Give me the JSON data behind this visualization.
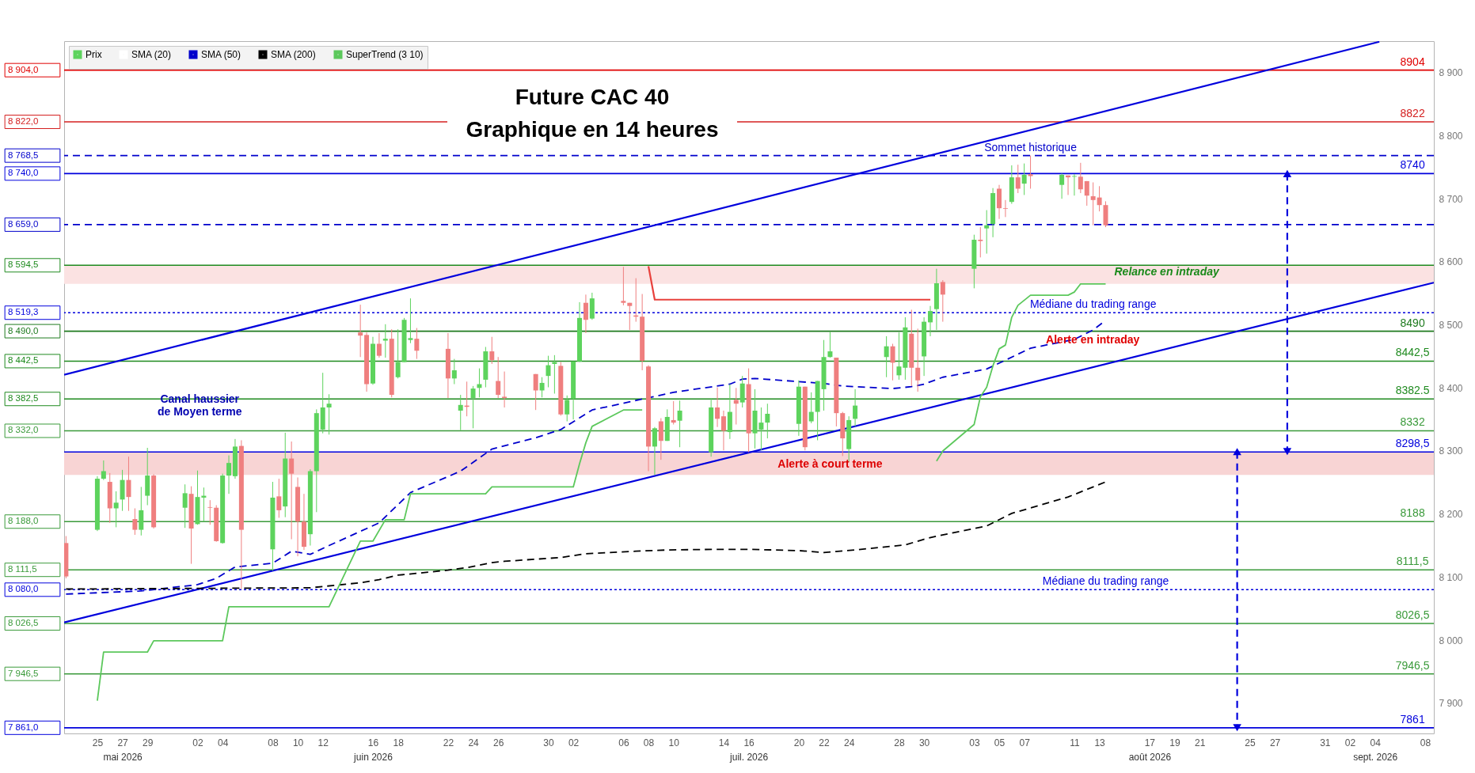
{
  "chart_data": {
    "type": "candlestick",
    "title": "Future CAC 40",
    "subtitle": "Graphique en 14 heures",
    "xlim": [
      "2026-05-22T08:24",
      "2026-09-08T16:48"
    ],
    "ylim": [
      7852,
      8950
    ],
    "xticks": [
      {
        "value": "2026-05-25T00:00",
        "label": "25"
      },
      {
        "value": "2026-05-27T00:00",
        "label": "27"
      },
      {
        "value": "2026-05-29T00:00",
        "label": "29"
      },
      {
        "value": "2026-06-02T00:00",
        "label": "02"
      },
      {
        "value": "2026-06-04T00:00",
        "label": "04"
      },
      {
        "value": "2026-06-08T00:00",
        "label": "08"
      },
      {
        "value": "2026-06-10T00:00",
        "label": "10"
      },
      {
        "value": "2026-06-12T00:00",
        "label": "12"
      },
      {
        "value": "2026-06-16T00:00",
        "label": "16"
      },
      {
        "value": "2026-06-18T00:00",
        "label": "18"
      },
      {
        "value": "2026-06-22T00:00",
        "label": "22"
      },
      {
        "value": "2026-06-24T00:00",
        "label": "24"
      },
      {
        "value": "2026-06-26T00:00",
        "label": "26"
      },
      {
        "value": "2026-06-30T00:00",
        "label": "30"
      },
      {
        "value": "2026-07-02T00:00",
        "label": "02"
      },
      {
        "value": "2026-07-06T00:00",
        "label": "06"
      },
      {
        "value": "2026-07-08T00:00",
        "label": "08"
      },
      {
        "value": "2026-07-10T00:00",
        "label": "10"
      },
      {
        "value": "2026-07-14T00:00",
        "label": "14"
      },
      {
        "value": "2026-07-16T00:00",
        "label": "16"
      },
      {
        "value": "2026-07-20T00:00",
        "label": "20"
      },
      {
        "value": "2026-07-22T00:00",
        "label": "22"
      },
      {
        "value": "2026-07-24T00:00",
        "label": "24"
      },
      {
        "value": "2026-07-28T00:00",
        "label": "28"
      },
      {
        "value": "2026-07-30T00:00",
        "label": "30"
      },
      {
        "value": "2026-08-03T00:00",
        "label": "03"
      },
      {
        "value": "2026-08-05T00:00",
        "label": "05"
      },
      {
        "value": "2026-08-07T00:00",
        "label": "07"
      },
      {
        "value": "2026-08-11T00:00",
        "label": "11"
      },
      {
        "value": "2026-08-13T00:00",
        "label": "13"
      },
      {
        "value": "2026-08-17T00:00",
        "label": "17"
      },
      {
        "value": "2026-08-19T00:00",
        "label": "19"
      },
      {
        "value": "2026-08-21T00:00",
        "label": "21"
      },
      {
        "value": "2026-08-25T00:00",
        "label": "25"
      },
      {
        "value": "2026-08-27T00:00",
        "label": "27"
      },
      {
        "value": "2026-08-31T00:00",
        "label": "31"
      },
      {
        "value": "2026-09-02T00:00",
        "label": "02"
      },
      {
        "value": "2026-09-04T00:00",
        "label": "04"
      },
      {
        "value": "2026-09-08T00:00",
        "label": "08"
      }
    ],
    "x2lim": [
      "2026-05-22T08:24",
      "2026-09-08T16:48"
    ],
    "x2ticks": [
      {
        "value": "2026-05-27T00:00",
        "label": "mai 2026"
      },
      {
        "value": "2026-06-16T00:00",
        "label": "juin 2026"
      },
      {
        "value": "2026-07-16T00:00",
        "label": "juil. 2026"
      },
      {
        "value": "2026-08-17T00:00",
        "label": "août 2026"
      },
      {
        "value": "2026-09-04T00:00",
        "label": "sept. 2026"
      }
    ],
    "yticks": [
      {
        "value": 7900,
        "label": "7 900"
      },
      {
        "value": 8000,
        "label": "8 000"
      },
      {
        "value": 8100,
        "label": "8 100"
      },
      {
        "value": 8200,
        "label": "8 200"
      },
      {
        "value": 8300,
        "label": "8 300"
      },
      {
        "value": 8400,
        "label": "8 400"
      },
      {
        "value": 8500,
        "label": "8 500"
      },
      {
        "value": 8600,
        "label": "8 600"
      },
      {
        "value": 8700,
        "label": "8 700"
      },
      {
        "value": 8800,
        "label": "8 800"
      },
      {
        "value": 8900,
        "label": "8 900"
      }
    ],
    "legend": "top left",
    "series": [
      {
        "name": "Prix",
        "color": "#5dd35d",
        "x": [
          "2026-05-22T12:00",
          "2026-05-25T00:00",
          "2026-05-25T12:00",
          "2026-05-26T00:00",
          "2026-05-26T12:00",
          "2026-05-27T00:00",
          "2026-05-27T12:00",
          "2026-05-28T00:00",
          "2026-05-28T12:00",
          "2026-05-29T00:00",
          "2026-05-29T12:00",
          "2026-06-01T00:00",
          "2026-06-01T12:00",
          "2026-06-02T00:00",
          "2026-06-02T12:00",
          "2026-06-03T00:00",
          "2026-06-03T12:00",
          "2026-06-04T00:00",
          "2026-06-04T12:00",
          "2026-06-05T00:00",
          "2026-06-05T12:00",
          "2026-06-08T00:00",
          "2026-06-08T12:00",
          "2026-06-09T00:00",
          "2026-06-09T12:00",
          "2026-06-10T00:00",
          "2026-06-10T12:00",
          "2026-06-11T00:00",
          "2026-06-11T12:00",
          "2026-06-12T00:00",
          "2026-06-12T12:00",
          "2026-06-15T00:00",
          "2026-06-15T12:00",
          "2026-06-16T00:00",
          "2026-06-16T12:00",
          "2026-06-17T00:00",
          "2026-06-17T12:00",
          "2026-06-18T00:00",
          "2026-06-18T12:00",
          "2026-06-19T00:00",
          "2026-06-19T12:00",
          "2026-06-22T00:00",
          "2026-06-22T12:00",
          "2026-06-23T00:00",
          "2026-06-23T12:00",
          "2026-06-24T00:00",
          "2026-06-24T12:00",
          "2026-06-25T00:00",
          "2026-06-25T12:00",
          "2026-06-26T00:00",
          "2026-06-26T12:00",
          "2026-06-29T00:00",
          "2026-06-29T12:00",
          "2026-06-30T00:00",
          "2026-06-30T12:00",
          "2026-07-01T00:00",
          "2026-07-01T12:00",
          "2026-07-02T00:00",
          "2026-07-02T12:00",
          "2026-07-03T00:00",
          "2026-07-03T12:00",
          "2026-07-06T00:00",
          "2026-07-06T12:00",
          "2026-07-07T00:00",
          "2026-07-07T12:00",
          "2026-07-08T00:00",
          "2026-07-08T12:00",
          "2026-07-09T00:00",
          "2026-07-09T12:00",
          "2026-07-10T00:00",
          "2026-07-10T12:00",
          "2026-07-13T00:00",
          "2026-07-13T12:00",
          "2026-07-14T00:00",
          "2026-07-14T12:00",
          "2026-07-15T00:00",
          "2026-07-15T12:00",
          "2026-07-16T00:00",
          "2026-07-16T12:00",
          "2026-07-17T00:00",
          "2026-07-17T12:00",
          "2026-07-20T00:00",
          "2026-07-20T12:00",
          "2026-07-21T00:00",
          "2026-07-21T12:00",
          "2026-07-22T00:00",
          "2026-07-22T12:00",
          "2026-07-23T00:00",
          "2026-07-23T12:00",
          "2026-07-24T00:00",
          "2026-07-24T12:00",
          "2026-07-27T00:00",
          "2026-07-27T12:00",
          "2026-07-28T00:00",
          "2026-07-28T12:00",
          "2026-07-29T00:00",
          "2026-07-29T12:00",
          "2026-07-30T00:00",
          "2026-07-30T12:00",
          "2026-07-31T00:00",
          "2026-07-31T12:00",
          "2026-08-03T00:00",
          "2026-08-03T12:00",
          "2026-08-04T00:00",
          "2026-08-04T12:00",
          "2026-08-05T00:00",
          "2026-08-05T12:00",
          "2026-08-06T00:00",
          "2026-08-06T12:00",
          "2026-08-07T00:00",
          "2026-08-07T12:00",
          "2026-08-10T00:00",
          "2026-08-10T12:00",
          "2026-08-11T00:00",
          "2026-08-11T12:00",
          "2026-08-12T00:00",
          "2026-08-12T12:00",
          "2026-08-13T00:00",
          "2026-08-13T12:00"
        ],
        "ohlc": [
          [
            8154,
            8165,
            8098,
            8101
          ],
          [
            8175,
            8260,
            8173,
            8256
          ],
          [
            8256,
            8285,
            8254,
            8268
          ],
          [
            8251,
            8265,
            8186,
            8209
          ],
          [
            8209,
            8236,
            8179,
            8218
          ],
          [
            8223,
            8270,
            8205,
            8254
          ],
          [
            8254,
            8291,
            8205,
            8227
          ],
          [
            8192,
            8209,
            8167,
            8175
          ],
          [
            8175,
            8243,
            8166,
            8206
          ],
          [
            8229,
            8305,
            8214,
            8261
          ],
          [
            8261,
            8263,
            8177,
            8179
          ],
          [
            8210,
            8247,
            8178,
            8233
          ],
          [
            8232,
            8244,
            8121,
            8177
          ],
          [
            8184,
            8269,
            8183,
            8227
          ],
          [
            8226,
            8242,
            8188,
            8229
          ],
          [
            8211,
            8222,
            8183,
            8210
          ],
          [
            8210,
            8214,
            8156,
            8157
          ],
          [
            8154,
            8264,
            8153,
            8261
          ],
          [
            8261,
            8293,
            8232,
            8281
          ],
          [
            8260,
            8319,
            8256,
            8307
          ],
          [
            8308,
            8317,
            8081,
            8175
          ],
          [
            8144,
            8251,
            8110,
            8226
          ],
          [
            8228,
            8256,
            8194,
            8206
          ],
          [
            8212,
            8329,
            8195,
            8288
          ],
          [
            8288,
            8315,
            8160,
            8264
          ],
          [
            8243,
            8258,
            8133,
            8188
          ],
          [
            8188,
            8232,
            8143,
            8148
          ],
          [
            8168,
            8271,
            8150,
            8268
          ],
          [
            8268,
            8366,
            8203,
            8360
          ],
          [
            8334,
            8424,
            8328,
            8369
          ],
          [
            8369,
            8390,
            8326,
            8375
          ],
          [
            8488,
            8532,
            8449,
            8483
          ],
          [
            8484,
            8488,
            8394,
            8406
          ],
          [
            8407,
            8481,
            8405,
            8470
          ],
          [
            8470,
            8487,
            8448,
            8451
          ],
          [
            8475,
            8501,
            8448,
            8478
          ],
          [
            8478,
            8493,
            8385,
            8389
          ],
          [
            8417,
            8493,
            8415,
            8441
          ],
          [
            8441,
            8511,
            8441,
            8508
          ],
          [
            8476,
            8542,
            8471,
            8479
          ],
          [
            8478,
            8495,
            8446,
            8459
          ],
          [
            8462,
            8487,
            8384,
            8415
          ],
          [
            8415,
            8446,
            8406,
            8428
          ],
          [
            8364,
            8389,
            8333,
            8373
          ],
          [
            8372,
            8410,
            8355,
            8370
          ],
          [
            8384,
            8403,
            8336,
            8399
          ],
          [
            8400,
            8431,
            8385,
            8406
          ],
          [
            8413,
            8465,
            8401,
            8458
          ],
          [
            8458,
            8481,
            8438,
            8444
          ],
          [
            8411,
            8449,
            8384,
            8389
          ],
          [
            8386,
            8426,
            8369,
            8384
          ],
          [
            8422,
            8422,
            8365,
            8396
          ],
          [
            8396,
            8417,
            8385,
            8408
          ],
          [
            8419,
            8451,
            8401,
            8436
          ],
          [
            8438,
            8452,
            8391,
            8441
          ],
          [
            8435,
            8441,
            8356,
            8358
          ],
          [
            8358,
            8388,
            8347,
            8381
          ],
          [
            8383,
            8442,
            8350,
            8442
          ],
          [
            8442,
            8536,
            8441,
            8511
          ],
          [
            8535,
            8548,
            8487,
            8508
          ],
          [
            8510,
            8551,
            8508,
            8542
          ],
          [
            8538,
            8592,
            8531,
            8535
          ],
          [
            8535,
            8535,
            8492,
            8530
          ],
          [
            8515,
            8574,
            8505,
            8513
          ],
          [
            8513,
            8549,
            8428,
            8443
          ],
          [
            8434,
            8436,
            8268,
            8307
          ],
          [
            8307,
            8338,
            8262,
            8336
          ],
          [
            8347,
            8352,
            8286,
            8316
          ],
          [
            8316,
            8366,
            8316,
            8354
          ],
          [
            8349,
            8379,
            8342,
            8345
          ],
          [
            8348,
            8380,
            8306,
            8364
          ],
          [
            8298,
            8384,
            8291,
            8369
          ],
          [
            8369,
            8401,
            8338,
            8351
          ],
          [
            8355,
            8364,
            8301,
            8332
          ],
          [
            8330,
            8406,
            8319,
            8362
          ],
          [
            8381,
            8400,
            8342,
            8375
          ],
          [
            8377,
            8419,
            8369,
            8407
          ],
          [
            8406,
            8431,
            8298,
            8328
          ],
          [
            8328,
            8398,
            8304,
            8364
          ],
          [
            8334,
            8369,
            8301,
            8345
          ],
          [
            8345,
            8375,
            8320,
            8359
          ],
          [
            8343,
            8412,
            8324,
            8402
          ],
          [
            8402,
            8402,
            8301,
            8306
          ],
          [
            8347,
            8393,
            8344,
            8362
          ],
          [
            8362,
            8411,
            8317,
            8411
          ],
          [
            8398,
            8476,
            8364,
            8449
          ],
          [
            8449,
            8489,
            8448,
            8458
          ],
          [
            8448,
            8448,
            8339,
            8360
          ],
          [
            8360,
            8362,
            8292,
            8320
          ],
          [
            8303,
            8355,
            8283,
            8349
          ],
          [
            8351,
            8398,
            8339,
            8372
          ],
          [
            8449,
            8482,
            8417,
            8466
          ],
          [
            8466,
            8470,
            8412,
            8440
          ],
          [
            8420,
            8488,
            8413,
            8434
          ],
          [
            8432,
            8512,
            8413,
            8496
          ],
          [
            8486,
            8524,
            8403,
            8432
          ],
          [
            8432,
            8494,
            8394,
            8412
          ],
          [
            8450,
            8512,
            8419,
            8505
          ],
          [
            8504,
            8530,
            8482,
            8522
          ],
          [
            8525,
            8589,
            8492,
            8566
          ],
          [
            8568,
            8571,
            8505,
            8548
          ],
          [
            8589,
            8643,
            8558,
            8635
          ],
          [
            8635,
            8655,
            8607,
            8633
          ],
          [
            8653,
            8682,
            8613,
            8658
          ],
          [
            8660,
            8717,
            8639,
            8709
          ],
          [
            8716,
            8722,
            8668,
            8685
          ],
          [
            8685,
            8698,
            8671,
            8684
          ],
          [
            8695,
            8753,
            8692,
            8734
          ],
          [
            8734,
            8754,
            8709,
            8716
          ],
          [
            8724,
            8756,
            8706,
            8738
          ],
          [
            8739,
            8768.5,
            8716,
            8736
          ],
          [
            8722,
            8740,
            8700,
            8738
          ],
          [
            8737,
            8737,
            8706,
            8734
          ],
          [
            8735,
            8739,
            8705,
            8736
          ],
          [
            8735,
            8757,
            8709,
            8715
          ],
          [
            8728,
            8728,
            8689,
            8705
          ],
          [
            8704,
            8726,
            8658,
            8698
          ],
          [
            8702,
            8720,
            8680,
            8690
          ],
          [
            8690,
            8696,
            8655,
            8658
          ]
        ],
        "colors": [
          "#ef7f7f",
          "#5dd35d",
          "#5dd35d",
          "#ef7f7f",
          "#5dd35d",
          "#5dd35d",
          "#ef7f7f",
          "#ef7f7f",
          "#5dd35d",
          "#5dd35d",
          "#ef7f7f",
          "#5dd35d",
          "#ef7f7f",
          "#5dd35d",
          "#5dd35d",
          "#ef7f7f",
          "#ef7f7f",
          "#5dd35d",
          "#5dd35d",
          "#5dd35d",
          "#ef7f7f",
          "#5dd35d",
          "#ef7f7f",
          "#5dd35d",
          "#ef7f7f",
          "#ef7f7f",
          "#ef7f7f",
          "#5dd35d",
          "#5dd35d",
          "#5dd35d",
          "#5dd35d",
          "#ef7f7f",
          "#ef7f7f",
          "#5dd35d",
          "#ef7f7f",
          "#5dd35d",
          "#ef7f7f",
          "#5dd35d",
          "#5dd35d",
          "#5dd35d",
          "#ef7f7f",
          "#ef7f7f",
          "#5dd35d",
          "#5dd35d",
          "#ef7f7f",
          "#5dd35d",
          "#5dd35d",
          "#5dd35d",
          "#ef7f7f",
          "#ef7f7f",
          "#ef7f7f",
          "#ef7f7f",
          "#5dd35d",
          "#5dd35d",
          "#5dd35d",
          "#ef7f7f",
          "#5dd35d",
          "#5dd35d",
          "#5dd35d",
          "#ef7f7f",
          "#5dd35d",
          "#ef7f7f",
          "#ef7f7f",
          "#ef7f7f",
          "#ef7f7f",
          "#ef7f7f",
          "#5dd35d",
          "#ef7f7f",
          "#5dd35d",
          "#ef7f7f",
          "#5dd35d",
          "#5dd35d",
          "#ef7f7f",
          "#ef7f7f",
          "#5dd35d",
          "#ef7f7f",
          "#5dd35d",
          "#ef7f7f",
          "#5dd35d",
          "#5dd35d",
          "#5dd35d",
          "#5dd35d",
          "#ef7f7f",
          "#5dd35d",
          "#5dd35d",
          "#5dd35d",
          "#5dd35d",
          "#ef7f7f",
          "#ef7f7f",
          "#5dd35d",
          "#5dd35d",
          "#5dd35d",
          "#ef7f7f",
          "#5dd35d",
          "#5dd35d",
          "#ef7f7f",
          "#ef7f7f",
          "#5dd35d",
          "#5dd35d",
          "#5dd35d",
          "#ef7f7f",
          "#5dd35d",
          "#ef7f7f",
          "#5dd35d",
          "#5dd35d",
          "#ef7f7f",
          "#ef7f7f",
          "#5dd35d",
          "#ef7f7f",
          "#5dd35d",
          "#ef7f7f",
          "#5dd35d",
          "#ef7f7f",
          "#5dd35d",
          "#ef7f7f",
          "#ef7f7f",
          "#ef7f7f",
          "#ef7f7f",
          "#ef7f7f"
        ]
      },
      {
        "name": "SMA (20)",
        "type": "line",
        "color": "#ffffff"
      },
      {
        "name": "SMA (50)",
        "type": "line",
        "color": "#0000cc",
        "line_style": "dashed",
        "x": [
          "2026-05-22T12:00",
          "2026-05-28T12:00",
          "2026-06-02T00:00",
          "2026-06-03T12:00",
          "2026-06-05T00:00",
          "2026-06-08T00:00",
          "2026-06-09T12:00",
          "2026-06-11T00:00",
          "2026-06-12T12:00",
          "2026-06-16T12:00",
          "2026-06-19T00:00",
          "2026-06-23T00:00",
          "2026-06-25T12:00",
          "2026-06-29T00:00",
          "2026-07-01T00:00",
          "2026-07-03T12:00",
          "2026-07-10T00:00",
          "2026-07-14T12:00",
          "2026-07-15T12:00",
          "2026-07-16T12:00",
          "2026-07-20T00:00",
          "2026-07-22T00:00",
          "2026-07-23T12:00",
          "2026-07-27T12:00",
          "2026-07-29T00:00",
          "2026-07-30T00:00",
          "2026-07-31T12:00",
          "2026-08-04T00:00",
          "2026-08-05T12:00",
          "2026-08-07T12:00",
          "2026-08-11T00:00",
          "2026-08-12T12:00",
          "2026-08-13T12:00"
        ],
        "values": [
          8073,
          8078,
          8088,
          8098,
          8116,
          8122,
          8141,
          8136,
          8150,
          8186,
          8234,
          8268,
          8303,
          8321,
          8334,
          8365,
          8393,
          8406,
          8414,
          8415,
          8410,
          8407,
          8403,
          8399,
          8402,
          8406,
          8417,
          8430,
          8444,
          8463,
          8477,
          8492,
          8507
        ]
      },
      {
        "name": "SMA (200)",
        "type": "line",
        "color": "#000000",
        "line_style": "dashed",
        "x": [
          "2026-05-22T12:00",
          "2026-06-11T00:00",
          "2026-06-15T00:00",
          "2026-06-16T12:00",
          "2026-06-18T00:00",
          "2026-06-22T00:00",
          "2026-06-23T12:00",
          "2026-06-25T12:00",
          "2026-06-26T12:00",
          "2026-07-01T00:00",
          "2026-07-03T00:00",
          "2026-07-07T00:00",
          "2026-07-09T12:00",
          "2026-07-13T12:00",
          "2026-07-16T00:00",
          "2026-07-20T00:00",
          "2026-07-22T00:00",
          "2026-07-24T12:00",
          "2026-07-28T12:00",
          "2026-07-30T00:00",
          "2026-07-31T00:00",
          "2026-08-04T00:00",
          "2026-08-06T00:00",
          "2026-08-10T12:00",
          "2026-08-13T12:00"
        ],
        "values": [
          8081,
          8083,
          8091,
          8096,
          8103,
          8111,
          8115,
          8123,
          8125,
          8131,
          8137,
          8141,
          8143,
          8144,
          8144,
          8142,
          8139,
          8143,
          8151,
          8160,
          8165,
          8181,
          8201,
          8227,
          8251
        ]
      },
      {
        "name": "SuperTrend (3 10)",
        "type": "line",
        "color": "#5cc85c",
        "x": [
          "2026-05-25T00:00",
          "2026-05-25T12:00",
          "2026-05-29T00:00",
          "2026-05-29T12:00",
          "2026-06-04T00:00",
          "2026-06-04T12:00",
          "2026-06-12T12:00",
          "2026-06-15T00:00",
          "2026-06-16T00:00",
          "2026-06-17T00:00",
          "2026-06-18T12:00",
          "2026-06-19T00:00",
          "2026-06-25T00:00",
          "2026-06-25T12:00",
          "2026-07-02T00:00",
          "2026-07-02T12:00",
          "2026-07-03T00:00",
          "2026-07-03T12:00",
          "2026-07-06T00:00",
          "2026-07-07T12:00",
          "2026-07-08T00:00",
          "2026-07-31T00:00",
          "2026-07-31T12:00",
          "2026-08-03T00:00",
          "2026-08-03T12:00",
          "2026-08-04T00:00",
          "2026-08-04T12:00",
          "2026-08-05T00:00",
          "2026-08-05T12:00",
          "2026-08-06T00:00",
          "2026-08-06T12:00",
          "2026-08-07T12:00",
          "2026-08-10T12:00",
          "2026-08-11T00:00",
          "2026-08-11T12:00",
          "2026-08-13T12:00"
        ],
        "values": [
          7904,
          7981,
          7981,
          7999,
          7999,
          8053,
          8053,
          8157,
          8157,
          8191,
          8191,
          8232,
          8232,
          8243,
          8243,
          8280,
          8313,
          8339,
          8365,
          8365,
          null,
          8284,
          8300,
          8342,
          8386,
          8401,
          8435,
          8462,
          8468,
          8512,
          8531,
          8547,
          8547,
          8552,
          8565,
          8565
        ]
      },
      {
        "type": "line",
        "color": "#e8413c",
        "x": [
          "2026-07-08T00:00",
          "2026-07-08T12:00",
          "2026-07-30T12:00"
        ],
        "values": [
          8593,
          8540,
          8540
        ]
      },
      {
        "type": "line",
        "color": "#0000dd",
        "x": [
          "2026-05-22T08:24",
          "2026-09-04T08:24"
        ],
        "values": [
          8421,
          8949
        ]
      },
      {
        "type": "line",
        "color": "#0000dd",
        "x": [
          "2026-05-22T08:24",
          "2026-09-08T16:48"
        ],
        "values": [
          8028,
          8567
        ]
      },
      {
        "type": "line",
        "color": "#0000dd",
        "line_style": "dashed",
        "marker": "triangle",
        "x": [
          "2026-08-28T00:00",
          "2026-08-28T00:00"
        ],
        "values": [
          8740,
          8299
        ]
      },
      {
        "type": "line",
        "color": "#0000dd",
        "line_style": "dashed",
        "marker": "triangle",
        "x": [
          "2026-08-24T00:00",
          "2026-08-24T00:00"
        ],
        "values": [
          8299,
          7861
        ]
      }
    ],
    "ref_lines": [
      {
        "axis": "y",
        "value": 8904,
        "label": "8 904,0",
        "color": "#e00000"
      },
      {
        "axis": "y",
        "value": 8822,
        "label": "8 822,0",
        "color": "#d42020"
      },
      {
        "axis": "y",
        "value": 8768.5,
        "label": "8 768,5",
        "color": "#0000cc",
        "line_style": "dashed"
      },
      {
        "axis": "y",
        "value": 8740,
        "label": "8 740,0",
        "color": "#0000dd"
      },
      {
        "axis": "y",
        "value": 8659,
        "label": "8 659,0",
        "color": "#0000cc",
        "line_style": "dashed"
      },
      {
        "axis": "y",
        "value": 8594.5,
        "label": "8 594,5",
        "color": "#1e8a1e"
      },
      {
        "axis": "y",
        "value": 8519.3,
        "label": "8 519,3",
        "color": "#0000dd",
        "line_style": "dotted"
      },
      {
        "axis": "y",
        "value": 8490,
        "label": "8 490,0",
        "color": "#1e7a1e"
      },
      {
        "axis": "y",
        "value": 8442.5,
        "label": "8 442,5",
        "color": "#1e8a1e"
      },
      {
        "axis": "y",
        "value": 8382.5,
        "label": "8 382,5",
        "color": "#1e8a1e"
      },
      {
        "axis": "y",
        "value": 8332,
        "label": "8 332,0",
        "color": "#3a9a3a"
      },
      {
        "axis": "y",
        "value": 8298.5,
        "color": "#0000dd"
      },
      {
        "axis": "y",
        "value": 8188,
        "label": "8 188,0",
        "color": "#3a9a3a"
      },
      {
        "axis": "y",
        "value": 8111.5,
        "label": "8 111,5",
        "color": "#3a9a3a"
      },
      {
        "axis": "y",
        "value": 8080,
        "label": "8 080,0",
        "color": "#0000dd",
        "line_style": "dotted"
      },
      {
        "axis": "y",
        "value": 8026.5,
        "label": "8 026,5",
        "color": "#3a9a3a"
      },
      {
        "axis": "y",
        "value": 7946.5,
        "label": "7 946,5",
        "color": "#3a9a3a"
      },
      {
        "axis": "y",
        "value": 7861,
        "label": "7 861,0",
        "color": "#0000dd"
      }
    ],
    "bands": [
      {
        "axis": "y",
        "from": 8565,
        "to": 8594.5,
        "color": "#fbe2e2"
      },
      {
        "axis": "y",
        "from": 8262,
        "to": 8298.5,
        "color": "#f8d4d4"
      }
    ],
    "annotations": [
      {
        "text": "8904",
        "x": "2026-09-07T00:00",
        "y": 8904
      },
      {
        "text": "8822",
        "x": "2026-09-07T00:00",
        "y": 8822
      },
      {
        "text": "8740",
        "x": "2026-09-07T00:00",
        "y": 8740
      },
      {
        "text": "8490",
        "x": "2026-09-07T00:00",
        "y": 8490
      },
      {
        "text": "8442,5",
        "x": "2026-09-07T00:00",
        "y": 8442.5
      },
      {
        "text": "8382.5",
        "x": "2026-09-07T00:00",
        "y": 8382.5
      },
      {
        "text": "8332",
        "x": "2026-09-07T00:00",
        "y": 8332
      },
      {
        "text": "8298,5",
        "x": "2026-09-07T00:00",
        "y": 8298.5
      },
      {
        "text": "8188",
        "x": "2026-09-07T00:00",
        "y": 8188
      },
      {
        "text": "8111,5",
        "x": "2026-09-07T00:00",
        "y": 8111.5
      },
      {
        "text": "8026,5",
        "x": "2026-09-07T00:00",
        "y": 8026.5
      },
      {
        "text": "7946,5",
        "x": "2026-09-07T00:00",
        "y": 7946.5
      },
      {
        "text": "7861",
        "x": "2026-09-07T00:00",
        "y": 7861
      },
      {
        "text": "Sommet historique",
        "x": "2026-08-07T12:00",
        "y": 8768.5
      },
      {
        "text": "Médiane du trading range",
        "x": "2026-08-12T12:00",
        "y": 8519.3
      },
      {
        "text": "Médiane du trading range",
        "x": "2026-08-13T12:00",
        "y": 8080
      },
      {
        "text": "Alerte à court terme",
        "x": "2026-07-22T12:00",
        "y": 8266
      },
      "Canal haussier\nde Moyen terme",
      "Relance en intraday",
      "Alerte en intraday"
    ]
  }
}
